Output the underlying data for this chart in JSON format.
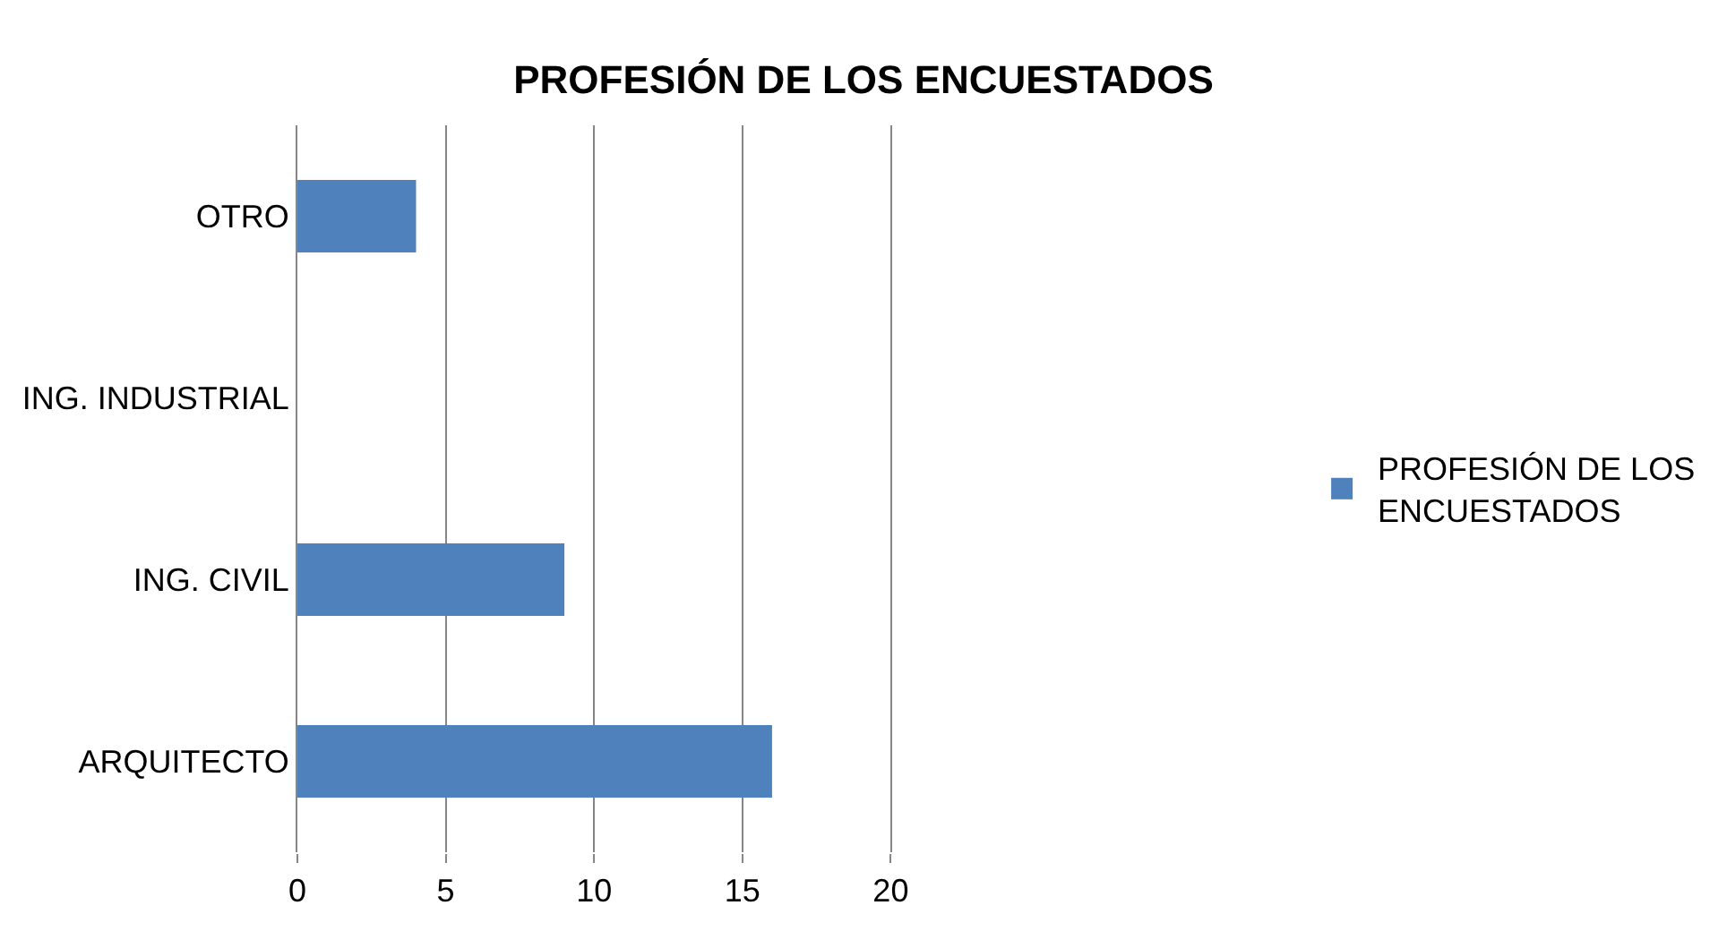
{
  "chart_data": {
    "type": "bar",
    "orientation": "horizontal",
    "title": "PROFESIÓN DE LOS ENCUESTADOS",
    "categories": [
      "OTRO",
      "ING. INDUSTRIAL",
      "ING. CIVIL",
      "ARQUITECTO"
    ],
    "series": [
      {
        "name": "PROFESIÓN DE LOS ENCUESTADOS",
        "color": "#4f81bd",
        "values": [
          4,
          0,
          9,
          16
        ]
      }
    ],
    "xlim": [
      0,
      20
    ],
    "xticks": [
      0,
      5,
      10,
      15,
      20
    ],
    "grid": "x",
    "legend": "right"
  }
}
